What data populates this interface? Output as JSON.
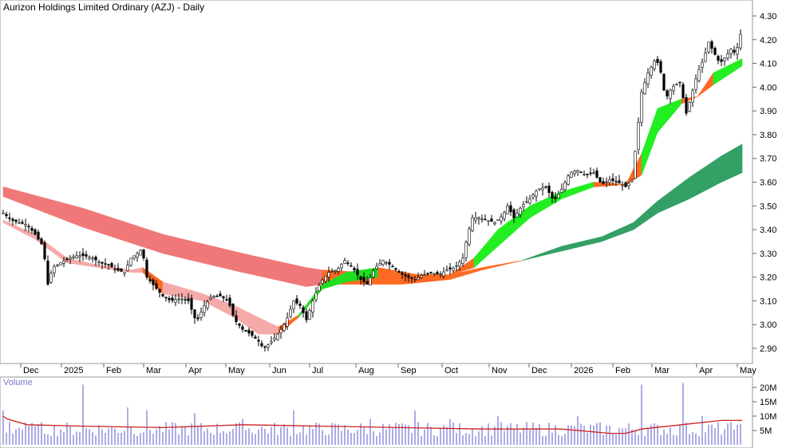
{
  "chart_data": {
    "type": "candlestick",
    "title": "Aurizon Holdings Limited Ordinary (AZJ) - Daily",
    "price_axis": {
      "ticks": [
        "4.30",
        "4.20",
        "4.10",
        "4.00",
        "3.90",
        "3.80",
        "3.70",
        "3.60",
        "3.50",
        "3.40",
        "3.30",
        "3.20",
        "3.10",
        "3.00",
        "2.90"
      ],
      "ylim": [
        2.85,
        4.32
      ]
    },
    "x_ticks": [
      "Dec",
      "2025",
      "Feb",
      "Mar",
      "Apr",
      "May",
      "Jun",
      "Jul",
      "Aug",
      "Sep",
      "Oct",
      "Nov",
      "Dec",
      "2026",
      "Feb",
      "Mar",
      "Apr",
      "May"
    ],
    "price_path": [
      [
        0,
        3.47
      ],
      [
        10,
        3.44
      ],
      [
        20,
        3.43
      ],
      [
        30,
        3.42
      ],
      [
        40,
        3.38
      ],
      [
        50,
        3.33
      ],
      [
        56,
        3.17
      ],
      [
        62,
        3.24
      ],
      [
        72,
        3.26
      ],
      [
        82,
        3.28
      ],
      [
        92,
        3.29
      ],
      [
        102,
        3.29
      ],
      [
        112,
        3.28
      ],
      [
        122,
        3.26
      ],
      [
        132,
        3.25
      ],
      [
        142,
        3.23
      ],
      [
        152,
        3.22
      ],
      [
        160,
        3.28
      ],
      [
        168,
        3.3
      ],
      [
        174,
        3.32
      ],
      [
        180,
        3.2
      ],
      [
        190,
        3.16
      ],
      [
        200,
        3.12
      ],
      [
        210,
        3.1
      ],
      [
        222,
        3.11
      ],
      [
        232,
        3.1
      ],
      [
        242,
        3.01
      ],
      [
        252,
        3.08
      ],
      [
        262,
        3.12
      ],
      [
        272,
        3.12
      ],
      [
        282,
        3.1
      ],
      [
        290,
        3.02
      ],
      [
        300,
        2.98
      ],
      [
        310,
        2.96
      ],
      [
        320,
        2.93
      ],
      [
        326,
        2.9
      ],
      [
        334,
        2.92
      ],
      [
        344,
        2.96
      ],
      [
        354,
        3.01
      ],
      [
        364,
        3.1
      ],
      [
        372,
        3.08
      ],
      [
        380,
        3.02
      ],
      [
        390,
        3.12
      ],
      [
        398,
        3.18
      ],
      [
        408,
        3.22
      ],
      [
        418,
        3.23
      ],
      [
        428,
        3.27
      ],
      [
        438,
        3.24
      ],
      [
        448,
        3.19
      ],
      [
        456,
        3.17
      ],
      [
        466,
        3.24
      ],
      [
        476,
        3.27
      ],
      [
        486,
        3.25
      ],
      [
        496,
        3.22
      ],
      [
        506,
        3.2
      ],
      [
        516,
        3.19
      ],
      [
        526,
        3.21
      ],
      [
        536,
        3.22
      ],
      [
        546,
        3.21
      ],
      [
        556,
        3.23
      ],
      [
        566,
        3.24
      ],
      [
        576,
        3.28
      ],
      [
        582,
        3.38
      ],
      [
        588,
        3.45
      ],
      [
        596,
        3.45
      ],
      [
        606,
        3.44
      ],
      [
        616,
        3.43
      ],
      [
        626,
        3.46
      ],
      [
        632,
        3.5
      ],
      [
        640,
        3.45
      ],
      [
        650,
        3.5
      ],
      [
        660,
        3.53
      ],
      [
        670,
        3.57
      ],
      [
        680,
        3.58
      ],
      [
        690,
        3.52
      ],
      [
        700,
        3.57
      ],
      [
        710,
        3.64
      ],
      [
        720,
        3.65
      ],
      [
        730,
        3.63
      ],
      [
        740,
        3.64
      ],
      [
        750,
        3.59
      ],
      [
        760,
        3.61
      ],
      [
        770,
        3.6
      ],
      [
        780,
        3.58
      ],
      [
        788,
        3.61
      ],
      [
        795,
        3.82
      ],
      [
        800,
        3.98
      ],
      [
        808,
        4.06
      ],
      [
        816,
        4.11
      ],
      [
        822,
        4.1
      ],
      [
        830,
        3.95
      ],
      [
        838,
        4.0
      ],
      [
        848,
        4.02
      ],
      [
        856,
        3.89
      ],
      [
        862,
        3.96
      ],
      [
        870,
        4.06
      ],
      [
        878,
        4.12
      ],
      [
        884,
        4.19
      ],
      [
        890,
        4.15
      ],
      [
        898,
        4.1
      ],
      [
        906,
        4.13
      ],
      [
        912,
        4.16
      ],
      [
        918,
        4.14
      ],
      [
        926,
        4.25
      ]
    ],
    "ema_long_band": [
      [
        0,
        3.58,
        3.54
      ],
      [
        100,
        3.49,
        3.41
      ],
      [
        200,
        3.38,
        3.3
      ],
      [
        300,
        3.3,
        3.22
      ],
      [
        380,
        3.24,
        3.16
      ],
      [
        400,
        3.23,
        3.17
      ],
      [
        500,
        3.21,
        3.17
      ],
      [
        560,
        3.21,
        3.19
      ],
      [
        600,
        3.24,
        3.23
      ],
      [
        650,
        3.27,
        3.27
      ],
      [
        700,
        3.33,
        3.31
      ],
      [
        750,
        3.37,
        3.35
      ],
      [
        790,
        3.43,
        3.4
      ],
      [
        820,
        3.52,
        3.47
      ],
      [
        860,
        3.62,
        3.53
      ],
      [
        900,
        3.71,
        3.6
      ],
      [
        926,
        3.76,
        3.64
      ]
    ],
    "ema_short_band": [
      [
        0,
        3.44,
        3.43
      ],
      [
        40,
        3.38,
        3.36
      ],
      [
        80,
        3.28,
        3.26
      ],
      [
        120,
        3.25,
        3.24
      ],
      [
        160,
        3.23,
        3.22
      ],
      [
        175,
        3.24,
        3.22
      ],
      [
        200,
        3.18,
        3.13
      ],
      [
        250,
        3.13,
        3.1
      ],
      [
        290,
        3.08,
        3.03
      ],
      [
        320,
        3.03,
        2.96
      ],
      [
        345,
        2.99,
        2.96
      ],
      [
        370,
        3.04,
        3.03
      ],
      [
        400,
        3.17,
        3.15
      ],
      [
        430,
        3.22,
        3.18
      ],
      [
        470,
        3.24,
        3.2
      ],
      [
        520,
        3.21,
        3.21
      ],
      [
        560,
        3.21,
        3.21
      ],
      [
        590,
        3.28,
        3.24
      ],
      [
        620,
        3.4,
        3.33
      ],
      [
        660,
        3.5,
        3.45
      ],
      [
        700,
        3.56,
        3.53
      ],
      [
        740,
        3.6,
        3.58
      ],
      [
        780,
        3.59,
        3.59
      ],
      [
        800,
        3.72,
        3.63
      ],
      [
        820,
        3.91,
        3.81
      ],
      [
        850,
        3.95,
        3.93
      ],
      [
        870,
        3.96,
        3.96
      ],
      [
        890,
        4.06,
        4.01
      ],
      [
        926,
        4.12,
        4.09
      ]
    ],
    "volume_axis": {
      "label": "Volume",
      "ticks": [
        "20M",
        "15M",
        "10M",
        "5M"
      ],
      "max": 22
    },
    "volume_bars": [
      [
        0,
        12
      ],
      [
        8,
        8
      ],
      [
        20,
        6
      ],
      [
        40,
        6.5
      ],
      [
        58,
        20
      ],
      [
        70,
        6
      ],
      [
        100,
        21
      ],
      [
        110,
        5
      ],
      [
        155,
        13
      ],
      [
        180,
        12
      ],
      [
        240,
        11
      ],
      [
        300,
        9
      ],
      [
        330,
        10
      ],
      [
        365,
        12
      ],
      [
        410,
        10
      ],
      [
        460,
        9
      ],
      [
        515,
        12
      ],
      [
        560,
        9
      ],
      [
        620,
        10
      ],
      [
        690,
        13
      ],
      [
        720,
        10
      ],
      [
        790,
        19
      ],
      [
        800,
        21
      ],
      [
        806,
        22
      ],
      [
        830,
        11
      ],
      [
        852,
        21.5
      ],
      [
        875,
        10
      ],
      [
        890,
        8
      ],
      [
        920,
        7
      ]
    ],
    "volume_average": [
      [
        0,
        10
      ],
      [
        5,
        9
      ],
      [
        30,
        7
      ],
      [
        100,
        6.5
      ],
      [
        200,
        6
      ],
      [
        300,
        7
      ],
      [
        400,
        6.5
      ],
      [
        500,
        6
      ],
      [
        600,
        5.5
      ],
      [
        700,
        5.5
      ],
      [
        760,
        4
      ],
      [
        780,
        4
      ],
      [
        800,
        5.5
      ],
      [
        850,
        7
      ],
      [
        900,
        8.5
      ],
      [
        926,
        8.5
      ]
    ]
  }
}
